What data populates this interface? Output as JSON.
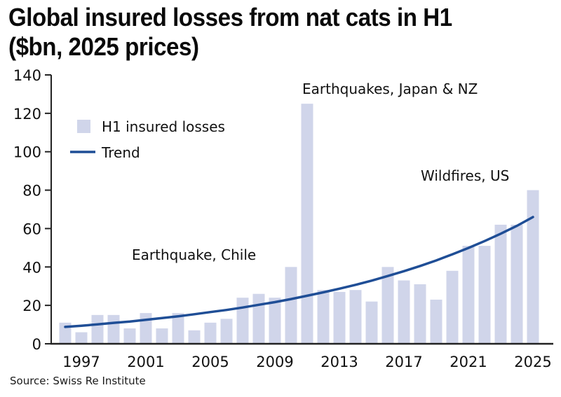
{
  "title": "Global insured losses from nat cats in H1 ($bn, 2025 prices)",
  "source": "Source: Swiss Re Institute",
  "colors": {
    "bar": "#d0d5ea",
    "trend": "#1f4e96",
    "axis": "#222222"
  },
  "chart_data": {
    "type": "bar",
    "title": "Global insured losses from nat cats in H1 ($bn, 2025 prices)",
    "xlabel": "",
    "ylabel": "",
    "ylim": [
      0,
      140
    ],
    "yticks": [
      0,
      20,
      40,
      60,
      80,
      100,
      120,
      140
    ],
    "xtick_labels": [
      "1997",
      "2001",
      "2005",
      "2009",
      "2013",
      "2017",
      "2021",
      "2025"
    ],
    "grid": false,
    "legend_position": "top-left",
    "categories": [
      1996,
      1997,
      1998,
      1999,
      2000,
      2001,
      2002,
      2003,
      2004,
      2005,
      2006,
      2007,
      2008,
      2009,
      2010,
      2011,
      2012,
      2013,
      2014,
      2015,
      2016,
      2017,
      2018,
      2019,
      2020,
      2021,
      2022,
      2023,
      2024,
      2025
    ],
    "series": [
      {
        "name": "H1 insured losses",
        "type": "bar",
        "values": [
          11,
          6,
          15,
          15,
          8,
          16,
          8,
          16,
          7,
          11,
          13,
          24,
          26,
          24,
          40,
          125,
          28,
          27,
          28,
          22,
          40,
          33,
          31,
          23,
          38,
          51,
          51,
          62,
          62,
          80
        ]
      },
      {
        "name": "Trend",
        "type": "line",
        "values": [
          8.8,
          9.4,
          10.1,
          10.9,
          11.6,
          12.5,
          13.4,
          14.3,
          15.4,
          16.5,
          17.6,
          18.9,
          20.3,
          21.7,
          23.3,
          25.0,
          26.8,
          28.7,
          30.7,
          32.9,
          35.3,
          37.8,
          40.5,
          43.4,
          46.6,
          49.9,
          53.5,
          57.3,
          61.4,
          66.0
        ]
      }
    ],
    "annotations": [
      {
        "text": "Earthquakes, Japan & NZ",
        "year": 2011
      },
      {
        "text": "Earthquake, Chile",
        "year": 2010
      },
      {
        "text": "Wildfires, US",
        "year": 2025
      }
    ],
    "legend": [
      "H1 insured losses",
      "Trend"
    ]
  }
}
